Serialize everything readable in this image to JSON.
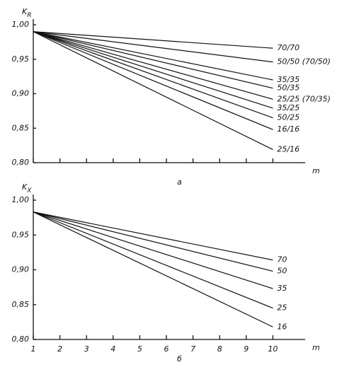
{
  "chart_data": [
    {
      "type": "line",
      "y_label": "K",
      "y_label_subscript": "R",
      "x_label": "m",
      "caption": "а",
      "x": [
        1,
        10
      ],
      "xlim": [
        1,
        11
      ],
      "xticks": [
        1,
        2,
        3,
        4,
        5,
        6,
        7,
        8,
        9,
        10
      ],
      "show_xtick_labels": false,
      "ylim": [
        0.8,
        1.0
      ],
      "yticks": [
        {
          "value": 0.8,
          "label": "0,80"
        },
        {
          "value": 0.85,
          "label": "0,85"
        },
        {
          "value": 0.9,
          "label": "0,90"
        },
        {
          "value": 0.95,
          "label": "0,95"
        },
        {
          "value": 1.0,
          "label": "1,00"
        }
      ],
      "series": [
        {
          "name": "70/70",
          "color": "#111",
          "values": [
            0.99,
            0.966
          ]
        },
        {
          "name": "50/50 (70/50)",
          "color": "#111",
          "values": [
            0.99,
            0.946
          ]
        },
        {
          "name": "35/35",
          "color": "#111",
          "values": [
            0.99,
            0.92
          ]
        },
        {
          "name": "50/35",
          "color": "#111",
          "values": [
            0.99,
            0.908
          ]
        },
        {
          "name": "25/25 (70/35)",
          "color": "#111",
          "values": [
            0.99,
            0.892
          ]
        },
        {
          "name": "35/25",
          "color": "#111",
          "values": [
            0.99,
            0.879
          ]
        },
        {
          "name": "50/25",
          "color": "#111",
          "values": [
            0.99,
            0.865
          ]
        },
        {
          "name": "16/16",
          "color": "#111",
          "values": [
            0.99,
            0.848
          ]
        },
        {
          "name": "25/16",
          "color": "#111",
          "values": [
            0.99,
            0.819
          ]
        }
      ]
    },
    {
      "type": "line",
      "y_label": "K",
      "y_label_subscript": "X",
      "x_label": "m",
      "caption": "б",
      "x": [
        1,
        10
      ],
      "xlim": [
        1,
        11
      ],
      "xticks": [
        1,
        2,
        3,
        4,
        5,
        6,
        7,
        8,
        9,
        10
      ],
      "show_xtick_labels": true,
      "ylim": [
        0.8,
        1.0
      ],
      "yticks": [
        {
          "value": 0.8,
          "label": "0,80"
        },
        {
          "value": 0.85,
          "label": "0,85"
        },
        {
          "value": 0.9,
          "label": "0,90"
        },
        {
          "value": 0.95,
          "label": "0,95"
        },
        {
          "value": 1.0,
          "label": "1,00"
        }
      ],
      "series": [
        {
          "name": "70",
          "color": "#111",
          "values": [
            0.983,
            0.914
          ]
        },
        {
          "name": "50",
          "color": "#111",
          "values": [
            0.983,
            0.898
          ]
        },
        {
          "name": "35",
          "color": "#111",
          "values": [
            0.983,
            0.873
          ]
        },
        {
          "name": "25",
          "color": "#111",
          "values": [
            0.983,
            0.845
          ]
        },
        {
          "name": "16",
          "color": "#111",
          "values": [
            0.983,
            0.818
          ]
        }
      ]
    }
  ]
}
